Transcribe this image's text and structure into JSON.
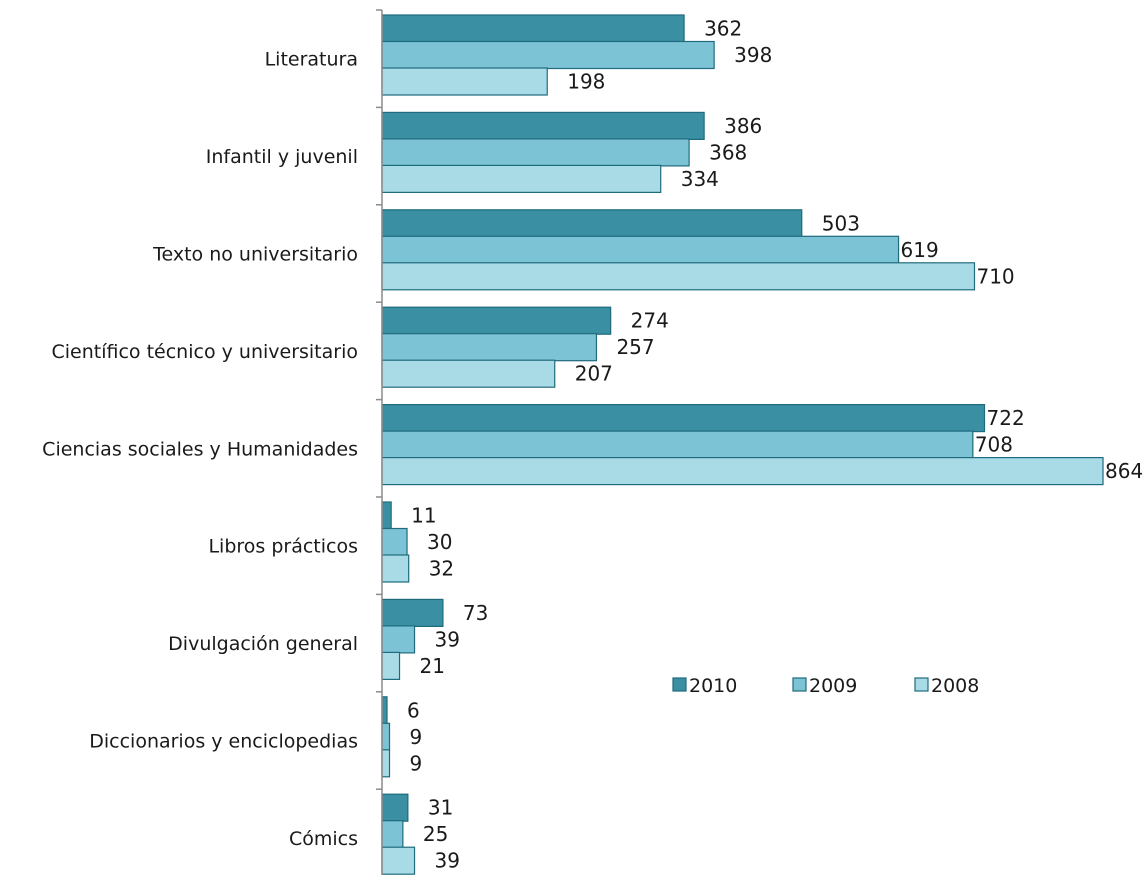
{
  "chart_data": {
    "type": "bar",
    "orientation": "horizontal",
    "categories": [
      "Literatura",
      "Infantil y juvenil",
      "Texto no universitario",
      "Científico técnico y universitario",
      "Ciencias sociales y Humanidades",
      "Libros prácticos",
      "Divulgación general",
      "Diccionarios y enciclopedias",
      "Cómics"
    ],
    "series": [
      {
        "name": "2010",
        "color": "#3a8fa3",
        "values": [
          362,
          386,
          503,
          274,
          722,
          11,
          73,
          6,
          31
        ]
      },
      {
        "name": "2009",
        "color": "#7cc3d5",
        "values": [
          398,
          368,
          619,
          257,
          708,
          30,
          39,
          9,
          25
        ]
      },
      {
        "name": "2008",
        "color": "#a9dbe7",
        "values": [
          198,
          334,
          710,
          207,
          864,
          32,
          21,
          9,
          39
        ]
      }
    ],
    "title": "",
    "xlabel": "",
    "ylabel": "",
    "xlim": [
      0,
      900
    ],
    "grid": false,
    "data_labels": true,
    "legend": "middle-right",
    "bar_edge_color": "#1f6b7d"
  }
}
